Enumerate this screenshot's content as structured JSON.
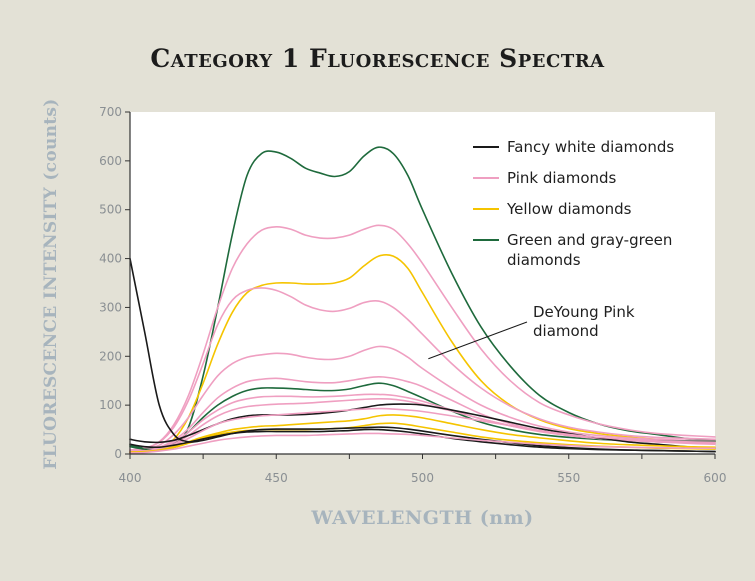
{
  "chart_data": {
    "type": "line",
    "title": "Category 1 Fluorescence Spectra",
    "xlabel": "WAVELENGTH (nm)",
    "ylabel": "FLUORESCENCE INTENSITY (counts)",
    "xlim": [
      400,
      600
    ],
    "ylim": [
      0,
      700
    ],
    "x_ticks": [
      400,
      450,
      500,
      550,
      600
    ],
    "y_ticks": [
      0,
      100,
      200,
      300,
      400,
      500,
      600,
      700
    ],
    "legend_position": "top-right",
    "legend": [
      {
        "label": "Fancy white diamonds",
        "color": "#1a1a1a"
      },
      {
        "label": "Pink diamonds",
        "color": "#ef9fc1"
      },
      {
        "label": "Yellow diamonds",
        "color": "#f5c400"
      },
      {
        "label": "Green and gray-green diamonds",
        "color": "#1e6a3c"
      }
    ],
    "annotation": {
      "text": "DeYoung Pink diamond",
      "target_series": "Pink diamonds",
      "x": 502,
      "y": 195
    },
    "series": [
      {
        "name": "Green and gray-green diamonds",
        "color": "#1e6a3c",
        "x": [
          400,
          405,
          410,
          415,
          420,
          425,
          430,
          435,
          440,
          445,
          450,
          455,
          460,
          465,
          470,
          475,
          480,
          485,
          490,
          495,
          500,
          510,
          520,
          530,
          540,
          550,
          560,
          570,
          580,
          590,
          600
        ],
        "y": [
          18,
          12,
          10,
          18,
          55,
          160,
          300,
          450,
          570,
          615,
          618,
          605,
          585,
          575,
          568,
          578,
          610,
          628,
          615,
          570,
          500,
          370,
          260,
          180,
          120,
          85,
          62,
          48,
          40,
          32,
          28
        ]
      },
      {
        "name": "Pink diamonds",
        "color": "#ef9fc1",
        "x": [
          400,
          405,
          410,
          415,
          420,
          425,
          430,
          435,
          440,
          445,
          450,
          455,
          460,
          465,
          470,
          475,
          480,
          485,
          490,
          495,
          500,
          510,
          520,
          530,
          540,
          550,
          560,
          570,
          580,
          590,
          600
        ],
        "y": [
          8,
          12,
          25,
          60,
          120,
          205,
          300,
          380,
          430,
          458,
          465,
          460,
          448,
          442,
          442,
          448,
          460,
          468,
          460,
          430,
          390,
          300,
          215,
          150,
          105,
          80,
          62,
          50,
          42,
          38,
          35
        ]
      },
      {
        "name": "Yellow diamonds",
        "color": "#f5c400",
        "x": [
          400,
          405,
          410,
          415,
          420,
          425,
          430,
          435,
          440,
          445,
          450,
          455,
          460,
          465,
          470,
          475,
          480,
          485,
          490,
          495,
          500,
          510,
          520,
          530,
          540,
          550,
          560,
          570,
          580,
          590,
          600
        ],
        "y": [
          5,
          6,
          10,
          30,
          75,
          145,
          225,
          290,
          330,
          345,
          350,
          350,
          348,
          348,
          350,
          360,
          385,
          405,
          405,
          380,
          330,
          230,
          150,
          100,
          70,
          52,
          42,
          35,
          30,
          27,
          25
        ]
      },
      {
        "name": "Pink diamonds",
        "color": "#ef9fc1",
        "x": [
          400,
          405,
          410,
          415,
          420,
          425,
          430,
          435,
          440,
          445,
          450,
          455,
          460,
          465,
          470,
          475,
          480,
          485,
          490,
          495,
          500,
          510,
          520,
          530,
          540,
          550,
          560,
          570,
          580,
          590,
          600
        ],
        "y": [
          8,
          12,
          24,
          55,
          110,
          185,
          265,
          315,
          335,
          340,
          335,
          322,
          305,
          295,
          292,
          298,
          310,
          313,
          300,
          275,
          245,
          185,
          135,
          98,
          72,
          55,
          45,
          38,
          34,
          32,
          30
        ]
      },
      {
        "name": "Pink diamonds",
        "color": "#ef9fc1",
        "x": [
          400,
          405,
          410,
          415,
          420,
          425,
          430,
          435,
          440,
          445,
          450,
          455,
          460,
          465,
          470,
          475,
          480,
          485,
          490,
          495,
          500,
          510,
          520,
          530,
          540,
          550,
          560,
          570,
          580,
          590,
          600
        ],
        "y": [
          6,
          10,
          18,
          40,
          75,
          120,
          160,
          185,
          198,
          203,
          206,
          204,
          198,
          194,
          194,
          200,
          212,
          220,
          215,
          198,
          175,
          135,
          100,
          75,
          57,
          45,
          38,
          33,
          30,
          28,
          27
        ]
      },
      {
        "name": "Pink diamonds",
        "color": "#ef9fc1",
        "x": [
          400,
          405,
          410,
          415,
          420,
          425,
          430,
          435,
          440,
          445,
          450,
          455,
          460,
          465,
          470,
          475,
          480,
          485,
          490,
          495,
          500,
          510,
          520,
          530,
          540,
          550,
          560,
          570,
          580,
          590,
          600
        ],
        "y": [
          5,
          8,
          14,
          28,
          52,
          85,
          115,
          135,
          148,
          153,
          155,
          152,
          148,
          146,
          146,
          150,
          155,
          158,
          155,
          148,
          138,
          110,
          82,
          62,
          48,
          38,
          32,
          28,
          25,
          23,
          22
        ]
      },
      {
        "name": "Green and gray-green diamonds",
        "color": "#1e6a3c",
        "x": [
          400,
          405,
          410,
          415,
          420,
          425,
          430,
          435,
          440,
          445,
          450,
          455,
          460,
          465,
          470,
          475,
          480,
          485,
          490,
          495,
          500,
          510,
          520,
          530,
          540,
          550,
          560,
          570,
          580,
          590,
          600
        ],
        "y": [
          15,
          10,
          10,
          22,
          45,
          75,
          100,
          118,
          130,
          135,
          135,
          134,
          132,
          130,
          130,
          133,
          140,
          145,
          140,
          128,
          115,
          88,
          65,
          50,
          40,
          34,
          30,
          28,
          27,
          26,
          26
        ]
      },
      {
        "name": "Pink diamonds",
        "color": "#ef9fc1",
        "x": [
          400,
          405,
          410,
          415,
          420,
          425,
          430,
          435,
          440,
          445,
          450,
          455,
          460,
          465,
          470,
          475,
          480,
          485,
          490,
          495,
          500,
          510,
          520,
          530,
          540,
          550,
          560,
          570,
          580,
          590,
          600
        ],
        "y": [
          4,
          6,
          12,
          24,
          45,
          70,
          90,
          105,
          113,
          117,
          118,
          118,
          117,
          117,
          118,
          120,
          122,
          122,
          120,
          115,
          108,
          90,
          72,
          58,
          46,
          38,
          32,
          28,
          25,
          23,
          22
        ]
      },
      {
        "name": "Pink diamonds",
        "color": "#ef9fc1",
        "x": [
          400,
          405,
          410,
          415,
          420,
          425,
          430,
          435,
          440,
          445,
          450,
          455,
          460,
          465,
          470,
          475,
          480,
          485,
          490,
          495,
          500,
          510,
          520,
          530,
          540,
          550,
          560,
          570,
          580,
          590,
          600
        ],
        "y": [
          4,
          6,
          10,
          20,
          38,
          60,
          78,
          90,
          97,
          100,
          102,
          103,
          104,
          106,
          108,
          110,
          112,
          113,
          112,
          108,
          102,
          88,
          72,
          58,
          47,
          38,
          32,
          28,
          25,
          22,
          20
        ]
      },
      {
        "name": "Fancy white diamonds",
        "color": "#1a1a1a",
        "x": [
          400,
          405,
          410,
          415,
          420,
          425,
          430,
          435,
          440,
          445,
          450,
          455,
          460,
          465,
          470,
          475,
          480,
          485,
          490,
          495,
          500,
          510,
          520,
          530,
          540,
          550,
          560,
          570,
          580,
          590,
          600
        ],
        "y": [
          30,
          25,
          24,
          28,
          38,
          50,
          62,
          72,
          78,
          80,
          80,
          80,
          81,
          83,
          86,
          90,
          95,
          100,
          102,
          102,
          100,
          90,
          78,
          65,
          52,
          42,
          33,
          25,
          20,
          15,
          12
        ]
      },
      {
        "name": "Pink diamonds",
        "color": "#ef9fc1",
        "x": [
          400,
          405,
          410,
          415,
          420,
          425,
          430,
          435,
          440,
          445,
          450,
          455,
          460,
          465,
          470,
          475,
          480,
          485,
          490,
          495,
          500,
          510,
          520,
          530,
          540,
          550,
          560,
          570,
          580,
          590,
          600
        ],
        "y": [
          3,
          5,
          10,
          18,
          32,
          48,
          62,
          70,
          75,
          78,
          80,
          82,
          84,
          86,
          88,
          90,
          92,
          93,
          92,
          90,
          87,
          78,
          68,
          58,
          48,
          40,
          34,
          30,
          27,
          25,
          24
        ]
      },
      {
        "name": "Yellow diamonds",
        "color": "#f5c400",
        "x": [
          400,
          405,
          410,
          415,
          420,
          425,
          430,
          435,
          440,
          445,
          450,
          455,
          460,
          465,
          470,
          475,
          480,
          485,
          490,
          495,
          500,
          510,
          520,
          530,
          540,
          550,
          560,
          570,
          580,
          590,
          600
        ],
        "y": [
          4,
          5,
          8,
          15,
          25,
          35,
          43,
          50,
          54,
          57,
          58,
          60,
          62,
          64,
          66,
          68,
          72,
          78,
          80,
          78,
          74,
          62,
          50,
          40,
          33,
          27,
          22,
          19,
          17,
          15,
          14
        ]
      },
      {
        "name": "Yellow diamonds",
        "color": "#f5c400",
        "x": [
          400,
          405,
          410,
          415,
          420,
          425,
          430,
          435,
          440,
          445,
          450,
          455,
          460,
          465,
          470,
          475,
          480,
          485,
          490,
          495,
          500,
          510,
          520,
          530,
          540,
          550,
          560,
          570,
          580,
          590,
          600
        ],
        "y": [
          3,
          4,
          7,
          13,
          22,
          32,
          40,
          45,
          48,
          50,
          50,
          50,
          50,
          51,
          52,
          54,
          58,
          62,
          63,
          60,
          55,
          45,
          35,
          28,
          23,
          19,
          16,
          14,
          12,
          11,
          10
        ]
      },
      {
        "name": "Fancy white diamonds",
        "color": "#1a1a1a",
        "x": [
          400,
          405,
          410,
          415,
          420,
          425,
          430,
          435,
          440,
          445,
          450,
          455,
          460,
          465,
          470,
          475,
          480,
          485,
          490,
          495,
          500,
          510,
          520,
          530,
          540,
          550,
          560,
          570,
          580,
          590,
          600
        ],
        "y": [
          400,
          250,
          100,
          40,
          25,
          28,
          35,
          42,
          47,
          50,
          51,
          51,
          51,
          51,
          52,
          53,
          54,
          55,
          54,
          51,
          47,
          38,
          30,
          23,
          17,
          13,
          10,
          8,
          7,
          6,
          5
        ]
      },
      {
        "name": "Fancy white diamonds",
        "color": "#1a1a1a",
        "x": [
          400,
          405,
          410,
          415,
          420,
          425,
          430,
          435,
          440,
          445,
          450,
          455,
          460,
          465,
          470,
          475,
          480,
          485,
          490,
          495,
          500,
          510,
          520,
          530,
          540,
          550,
          560,
          570,
          580,
          590,
          600
        ],
        "y": [
          20,
          15,
          14,
          18,
          24,
          31,
          37,
          42,
          45,
          46,
          46,
          46,
          46,
          46,
          47,
          48,
          50,
          50,
          48,
          45,
          41,
          32,
          25,
          19,
          14,
          11,
          9,
          8,
          7,
          6,
          5
        ]
      },
      {
        "name": "Pink diamonds",
        "color": "#ef9fc1",
        "x": [
          400,
          405,
          410,
          415,
          420,
          425,
          430,
          435,
          440,
          445,
          450,
          455,
          460,
          465,
          470,
          475,
          480,
          485,
          490,
          495,
          500,
          510,
          520,
          530,
          540,
          550,
          560,
          570,
          580,
          590,
          600
        ],
        "y": [
          2,
          3,
          6,
          10,
          16,
          22,
          28,
          32,
          35,
          37,
          38,
          38,
          38,
          39,
          40,
          41,
          42,
          42,
          41,
          40,
          38,
          33,
          28,
          24,
          20,
          17,
          15,
          14,
          13,
          12,
          12
        ]
      }
    ]
  }
}
